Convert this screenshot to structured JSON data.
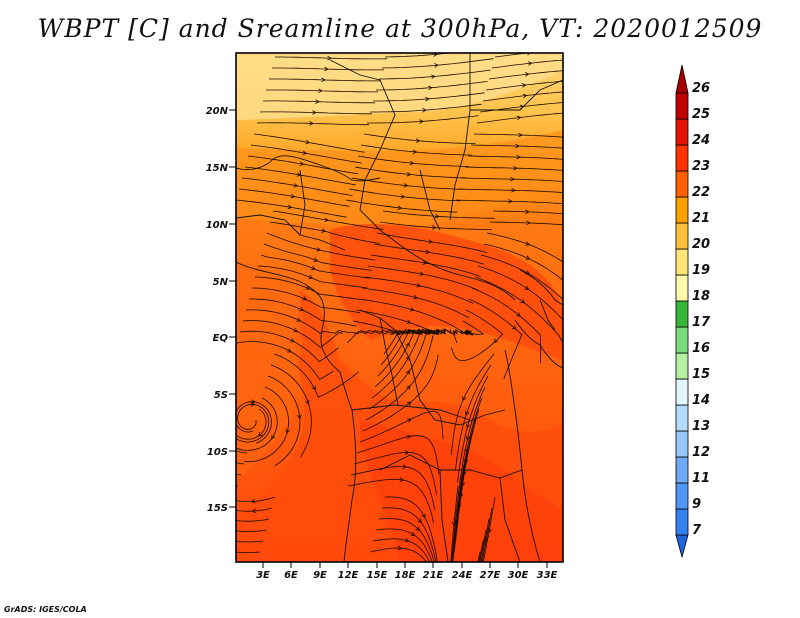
{
  "title": "WBPT [C] and Sreamline at 300hPa, VT: 2020012509",
  "credit": "GrADS: IGES/COLA",
  "map": {
    "lat_labels": [
      "20N",
      "15N",
      "10N",
      "5N",
      "EQ",
      "5S",
      "10S",
      "15S"
    ],
    "lon_labels": [
      "3E",
      "6E",
      "9E",
      "12E",
      "15E",
      "18E",
      "21E",
      "24E",
      "27E",
      "30E",
      "33E"
    ]
  },
  "colorbar": {
    "labels": [
      "7",
      "9",
      "11",
      "12",
      "13",
      "14",
      "15",
      "16",
      "17",
      "18",
      "19",
      "20",
      "21",
      "22",
      "23",
      "24",
      "25",
      "26"
    ],
    "colors": [
      "#1e64dc",
      "#3282f0",
      "#5096f5",
      "#6eaaf5",
      "#96c8fa",
      "#b4dcfa",
      "#e1f5fa",
      "#b4f0a0",
      "#78dc78",
      "#37b737",
      "#fffaaa",
      "#ffe678",
      "#ffc03c",
      "#ffa000",
      "#ff6000",
      "#ff3200",
      "#e11400",
      "#c00000",
      "#a50000"
    ]
  }
}
